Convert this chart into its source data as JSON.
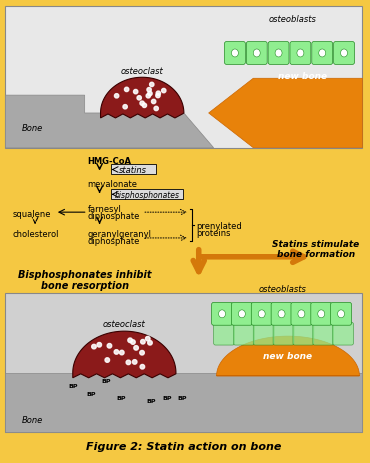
{
  "title": "Figure 2: Statin action on bone",
  "background_color": "#F5C842",
  "panel1": {
    "bone_color": "#A0A0A0",
    "new_bone_color": "#E8820A",
    "osteoclast_color": "#8B1A1A",
    "label_osteoclast": "osteoclast",
    "label_osteoblasts": "osteoblasts",
    "label_new_bone": "new bone",
    "label_bone": "Bone"
  },
  "pathway": {
    "statins_label": "statins",
    "bisphosphonates_label": "bisphosphonates"
  },
  "panel2": {
    "title_left": "Bisphosphonates inhibit\nbone resorption",
    "title_right": "Statins stimulate\nbone formation",
    "bp_label": "BP",
    "label_osteoclast": "osteoclast",
    "label_osteoblasts": "osteoblasts",
    "label_new_bone": "new bone",
    "label_bone": "Bone"
  }
}
